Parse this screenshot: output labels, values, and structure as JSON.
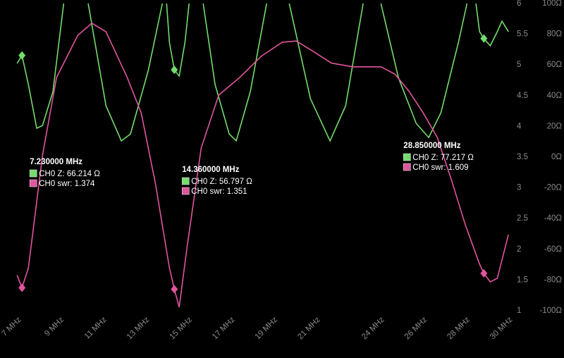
{
  "chart_data": {
    "type": "line",
    "xlim": [
      6.2,
      30.15
    ],
    "xticks": [
      {
        "value": 7,
        "label": "7 MHz"
      },
      {
        "value": 9,
        "label": "9 MHz"
      },
      {
        "value": 11,
        "label": "11 MHz"
      },
      {
        "value": 13,
        "label": "13 MHz"
      },
      {
        "value": 15,
        "label": "15 MHz"
      },
      {
        "value": 17,
        "label": "17 MHz"
      },
      {
        "value": 19,
        "label": "19 MHz"
      },
      {
        "value": 21,
        "label": "21 MHz"
      },
      {
        "value": 24,
        "label": "24 MHz"
      },
      {
        "value": 26,
        "label": "26 MHz"
      },
      {
        "value": 28,
        "label": "28 MHz"
      },
      {
        "value": 30,
        "label": "30 MHz"
      }
    ],
    "ylim": [
      1,
      6
    ],
    "yticks": [
      6,
      5.5,
      5,
      4.5,
      4,
      3.5,
      3,
      2.5,
      2,
      1.5,
      1
    ],
    "y2lim": [
      -100,
      100
    ],
    "y2ticks": [
      {
        "value": 100,
        "label": "100Ω"
      },
      {
        "value": 80,
        "label": "80Ω"
      },
      {
        "value": 60,
        "label": "60Ω"
      },
      {
        "value": 40,
        "label": "40Ω"
      },
      {
        "value": 20,
        "label": "20Ω"
      },
      {
        "value": 0,
        "label": "0Ω"
      },
      {
        "value": -20,
        "label": "-20Ω"
      },
      {
        "value": -40,
        "label": "-40Ω"
      },
      {
        "value": -60,
        "label": "-60Ω"
      },
      {
        "value": -80,
        "label": "-80Ω"
      },
      {
        "value": -100,
        "label": "-100Ω"
      }
    ],
    "series": [
      {
        "name": "CH0 Z",
        "color": "#74dc6c",
        "axis": "y2",
        "x": [
          7.0,
          7.23,
          7.53,
          7.92,
          8.19,
          8.68,
          9.18,
          null,
          10.33,
          11.16,
          11.88,
          12.31,
          13.14,
          13.8,
          null,
          14.0,
          14.13,
          14.36,
          14.59,
          14.86,
          15.05,
          null,
          15.71,
          16.27,
          16.93,
          17.26,
          17.92,
          18.68,
          null,
          19.74,
          20.73,
          21.65,
          22.38,
          23.2,
          null,
          24.03,
          24.85,
          25.68,
          26.27,
          26.84,
          27.66,
          28.06,
          null,
          28.48,
          28.65,
          28.85,
          29.15,
          29.48,
          29.7,
          30.0
        ],
        "values": [
          61.0,
          66.214,
          47.2,
          18.8,
          20.6,
          42.7,
          100,
          null,
          100,
          33.5,
          10.6,
          15.1,
          56.4,
          100,
          null,
          100,
          74.8,
          56.797,
          52.8,
          74.8,
          100,
          null,
          100,
          47.2,
          15.1,
          10.6,
          42.7,
          100,
          null,
          100,
          38.1,
          10.6,
          33.5,
          100,
          null,
          100,
          51.8,
          22.0,
          12.8,
          28.9,
          74.8,
          100,
          null,
          100,
          81.7,
          77.217,
          72.5,
          81.7,
          88.5,
          81.7
        ]
      },
      {
        "name": "CH0 swr",
        "color": "#e0559e",
        "x": [
          7.0,
          7.23,
          7.53,
          8.19,
          8.85,
          9.84,
          10.5,
          11.16,
          12.15,
          12.81,
          13.47,
          14.13,
          14.36,
          14.59,
          14.96,
          15.62,
          16.44,
          17.43,
          18.42,
          19.41,
          20.07,
          20.73,
          21.72,
          22.71,
          24.03,
          24.69,
          25.35,
          26.01,
          26.67,
          27.33,
          27.99,
          28.65,
          28.85,
          29.15,
          29.48,
          30.0
        ],
        "values": [
          1.58,
          1.374,
          1.7,
          3.53,
          4.8,
          5.48,
          5.68,
          5.54,
          4.8,
          4.22,
          3.08,
          1.7,
          1.351,
          1.06,
          2.04,
          3.65,
          4.51,
          4.8,
          5.14,
          5.37,
          5.39,
          5.25,
          5.03,
          4.97,
          4.97,
          4.85,
          4.57,
          4.22,
          3.82,
          3.13,
          2.39,
          1.76,
          1.609,
          1.47,
          1.53,
          2.24
        ]
      }
    ],
    "markers": [
      {
        "x": 7.23,
        "label": "7.230000 MHz",
        "z": 66.214,
        "z_label": "CH0 Z: 66.214 Ω",
        "swr": 1.374,
        "swr_label": "CH0 swr: 1.374"
      },
      {
        "x": 14.36,
        "label": "14.360000 MHz",
        "z": 56.797,
        "z_label": "CH0 Z: 56.797 Ω",
        "swr": 1.351,
        "swr_label": "CH0 swr: 1.351"
      },
      {
        "x": 28.85,
        "label": "28.850000 MHz",
        "z": 77.217,
        "z_label": "CH0 Z: 77.217 Ω",
        "swr": 1.609,
        "swr_label": "CH0 swr: 1.609"
      }
    ]
  }
}
